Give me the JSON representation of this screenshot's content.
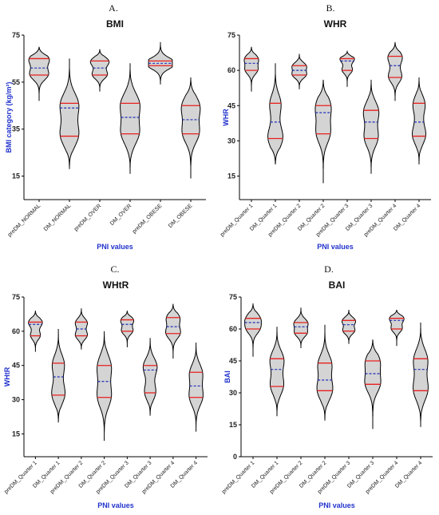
{
  "chart_data": [
    {
      "panel": "A.",
      "type": "violin",
      "title": "BMI",
      "ylabel": "BMI category (kg/m²)",
      "xlabel": "PNI values",
      "ylim": [
        5,
        75
      ],
      "yticks": [
        15,
        35,
        55,
        75
      ],
      "categories": [
        "preDM_NORMAL",
        "DM_NORMAL",
        "preDM_OVER",
        "DM_OVER",
        "preDM_OBESE",
        "DM_OBESE"
      ],
      "violins": [
        {
          "min": 47,
          "max": 70,
          "q1": 58,
          "median": 61,
          "q3": 65,
          "mode": 62,
          "width": 0.9
        },
        {
          "min": 18,
          "max": 65,
          "q1": 32,
          "median": 44,
          "q3": 46,
          "mode": 39,
          "width": 0.85
        },
        {
          "min": 51,
          "max": 69,
          "q1": 58,
          "median": 61,
          "q3": 64,
          "mode": 62,
          "width": 0.8
        },
        {
          "min": 16,
          "max": 63,
          "q1": 33,
          "median": 40,
          "q3": 46,
          "mode": 40,
          "width": 0.85
        },
        {
          "min": 54,
          "max": 72,
          "q1": 62,
          "median": 63,
          "q3": 64,
          "mode": 63,
          "width": 0.85
        },
        {
          "min": 14,
          "max": 57,
          "q1": 33,
          "median": 39,
          "q3": 45,
          "mode": 40,
          "width": 0.8
        }
      ]
    },
    {
      "panel": "B.",
      "type": "violin",
      "title": "WHR",
      "ylabel": "WHR",
      "xlabel": "PNI values",
      "ylim": [
        5,
        75
      ],
      "yticks": [
        15,
        30,
        45,
        60,
        75
      ],
      "categories": [
        "preDM_Quarter 1",
        "DM_Quarter 1",
        "preDM_Quarter 2",
        "DM_Quarter 2",
        "preDM_Quarter 3",
        "DM_Quarter 3",
        "preDM_Quarter 4",
        "DM_Quarter 4"
      ],
      "violins": [
        {
          "min": 51,
          "max": 70,
          "q1": 60,
          "median": 63,
          "q3": 65,
          "mode": 63,
          "width": 0.75
        },
        {
          "min": 20,
          "max": 63,
          "q1": 31,
          "median": 38,
          "q3": 46,
          "mode": 35,
          "width": 0.8
        },
        {
          "min": 52,
          "max": 67,
          "q1": 58,
          "median": 60,
          "q3": 62,
          "mode": 60,
          "width": 0.8
        },
        {
          "min": 12,
          "max": 56,
          "q1": 33,
          "median": 42,
          "q3": 45,
          "mode": 40,
          "width": 0.85
        },
        {
          "min": 53,
          "max": 68,
          "q1": 60,
          "median": 64,
          "q3": 65,
          "mode": 64,
          "width": 0.75
        },
        {
          "min": 16,
          "max": 56,
          "q1": 31,
          "median": 38,
          "q3": 43,
          "mode": 38,
          "width": 0.85
        },
        {
          "min": 47,
          "max": 72,
          "q1": 57,
          "median": 62,
          "q3": 66,
          "mode": 62,
          "width": 0.85
        },
        {
          "min": 20,
          "max": 57,
          "q1": 32,
          "median": 38,
          "q3": 46,
          "mode": 38,
          "width": 0.8
        }
      ]
    },
    {
      "panel": "C.",
      "type": "violin",
      "title": "WHtR",
      "ylabel": "WHtR",
      "xlabel": "PNI values",
      "ylim": [
        5,
        75
      ],
      "yticks": [
        15,
        30,
        45,
        60,
        75
      ],
      "categories": [
        "preDM_Quarter 1",
        "DM_Quarter 1",
        "preDM_Quarter 2",
        "DM_Quarter 2",
        "preDM_Quarter 3",
        "DM_Quarter 3",
        "preDM_Quarter 4",
        "DM_Quarter 4"
      ],
      "violins": [
        {
          "min": 51,
          "max": 69,
          "q1": 58,
          "median": 63,
          "q3": 64,
          "mode": 63,
          "width": 0.75
        },
        {
          "min": 20,
          "max": 61,
          "q1": 32,
          "median": 40,
          "q3": 46,
          "mode": 38,
          "width": 0.8
        },
        {
          "min": 52,
          "max": 70,
          "q1": 58,
          "median": 61,
          "q3": 64,
          "mode": 61,
          "width": 0.75
        },
        {
          "min": 12,
          "max": 60,
          "q1": 31,
          "median": 38,
          "q3": 45,
          "mode": 38,
          "width": 0.85
        },
        {
          "min": 53,
          "max": 69,
          "q1": 60,
          "median": 63,
          "q3": 65,
          "mode": 63,
          "width": 0.75
        },
        {
          "min": 23,
          "max": 57,
          "q1": 33,
          "median": 43,
          "q3": 45,
          "mode": 41,
          "width": 0.8
        },
        {
          "min": 48,
          "max": 72,
          "q1": 59,
          "median": 62,
          "q3": 66,
          "mode": 62,
          "width": 0.85
        },
        {
          "min": 16,
          "max": 55,
          "q1": 31,
          "median": 36,
          "q3": 42,
          "mode": 36,
          "width": 0.8
        }
      ]
    },
    {
      "panel": "D.",
      "type": "violin",
      "title": "BAI",
      "ylabel": "BAI",
      "xlabel": "PNI values",
      "ylim": [
        0,
        75
      ],
      "yticks": [
        0,
        15,
        30,
        45,
        60,
        75
      ],
      "categories": [
        "preDM_Quarter 1",
        "DM_Quarter 1",
        "preDM_Quarter 2",
        "DM_Quarter 2",
        "preDM_Quarter 3",
        "DM_Quarter 3",
        "preDM_Quarter 4",
        "DM_Quarter 4"
      ],
      "violins": [
        {
          "min": 47,
          "max": 72,
          "q1": 60,
          "median": 63,
          "q3": 65,
          "mode": 63,
          "width": 0.75
        },
        {
          "min": 19,
          "max": 61,
          "q1": 33,
          "median": 41,
          "q3": 46,
          "mode": 40,
          "width": 0.8
        },
        {
          "min": 51,
          "max": 70,
          "q1": 58,
          "median": 61,
          "q3": 63,
          "mode": 61,
          "width": 0.75
        },
        {
          "min": 17,
          "max": 62,
          "q1": 31,
          "median": 36,
          "q3": 44,
          "mode": 36,
          "width": 0.85
        },
        {
          "min": 53,
          "max": 69,
          "q1": 59,
          "median": 62,
          "q3": 64,
          "mode": 62,
          "width": 0.75
        },
        {
          "min": 13,
          "max": 55,
          "q1": 34,
          "median": 39,
          "q3": 45,
          "mode": 39,
          "width": 0.85
        },
        {
          "min": 52,
          "max": 69,
          "q1": 60,
          "median": 64,
          "q3": 65,
          "mode": 64,
          "width": 0.75
        },
        {
          "min": 14,
          "max": 63,
          "q1": 31,
          "median": 41,
          "q3": 46,
          "mode": 38,
          "width": 0.85
        }
      ]
    }
  ],
  "colors": {
    "violin_fill": "#d4d4d4",
    "violin_stroke": "#000000",
    "quartile_line": "#e8201e",
    "median_line": "#1f2fb8",
    "axis_label": "#2233cc"
  }
}
